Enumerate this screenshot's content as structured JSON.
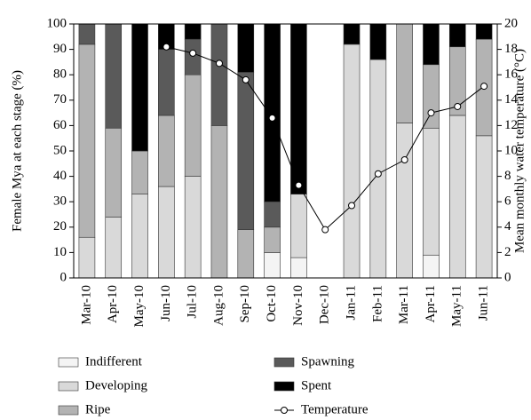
{
  "chart_data": {
    "type": "bar",
    "stacked": true,
    "ylabel": "Female Mya at each stage (%)",
    "y2label": "Mean monthly water temperature (°C)",
    "categories": [
      "Mar-10",
      "Apr-10",
      "May-10",
      "Jun-10",
      "Jul-10",
      "Aug-10",
      "Sep-10",
      "Oct-10",
      "Nov-10",
      "Dec-10",
      "Jan-11",
      "Feb-11",
      "Mar-11",
      "Apr-11",
      "May-11",
      "Jun-11"
    ],
    "series": [
      {
        "name": "Indifferent",
        "color": "#f4f4f4",
        "values": [
          0,
          0,
          0,
          0,
          0,
          0,
          0,
          10,
          8,
          0,
          0,
          0,
          0,
          9,
          0,
          0
        ]
      },
      {
        "name": "Developing",
        "color": "#d9d9d9",
        "values": [
          16,
          24,
          33,
          36,
          40,
          0,
          0,
          0,
          25,
          0,
          92,
          86,
          61,
          50,
          64,
          56
        ]
      },
      {
        "name": "Ripe",
        "color": "#b3b3b3",
        "values": [
          76,
          35,
          17,
          28,
          40,
          60,
          19,
          10,
          0,
          0,
          0,
          0,
          39,
          25,
          27,
          38
        ]
      },
      {
        "name": "Spawning",
        "color": "#5a5a5a",
        "values": [
          8,
          41,
          0,
          26,
          14,
          40,
          62,
          10,
          0,
          0,
          0,
          0,
          0,
          0,
          0,
          0
        ]
      },
      {
        "name": "Spent",
        "color": "#000000",
        "values": [
          0,
          0,
          50,
          10,
          6,
          0,
          19,
          70,
          67,
          0,
          8,
          14,
          0,
          16,
          9,
          6
        ]
      },
      {
        "name": "Temperature",
        "color": "#000000",
        "type": "line",
        "axis": "y2",
        "values": [
          null,
          null,
          null,
          18.2,
          17.7,
          16.9,
          15.6,
          12.6,
          7.3,
          3.8,
          5.7,
          8.2,
          9.3,
          13.0,
          13.5,
          15.1
        ]
      }
    ],
    "ylim": [
      0,
      100
    ],
    "yticks": [
      0,
      10,
      20,
      30,
      40,
      50,
      60,
      70,
      80,
      90,
      100
    ],
    "y2lim": [
      0,
      20
    ],
    "y2ticks": [
      0,
      2,
      4,
      6,
      8,
      10,
      12,
      14,
      16,
      18,
      20
    ]
  }
}
